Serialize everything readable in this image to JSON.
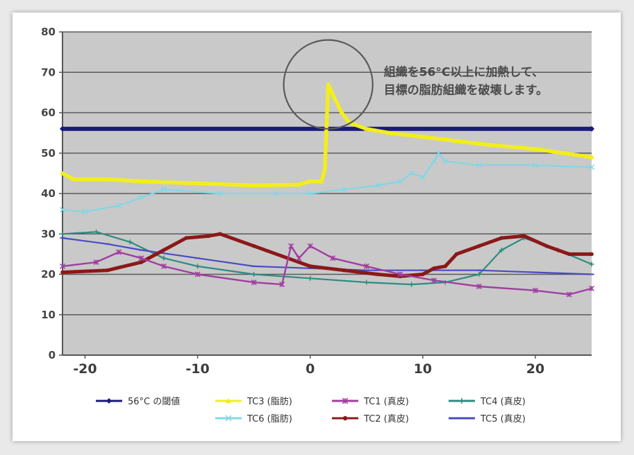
{
  "chart_data": {
    "type": "line",
    "title": "",
    "xlabel": "",
    "ylabel": "",
    "xlim": [
      -22,
      25
    ],
    "ylim": [
      0,
      80
    ],
    "x_ticks": [
      -20,
      -10,
      0,
      10,
      20
    ],
    "y_ticks": [
      0,
      10,
      20,
      30,
      40,
      50,
      60,
      70,
      80
    ],
    "grid": "horizontal",
    "legend_position": "bottom",
    "annotation": {
      "lines": [
        "組織を56°C以上に加熱して、",
        "目標の脂肪組織を破壊します。"
      ],
      "circle_center": [
        1.6,
        67
      ],
      "circle_radius_y": 11
    },
    "series": [
      {
        "name": "56°C の閾値",
        "color": "#1a1a7a",
        "marker": "diamond",
        "points": [
          [
            -22,
            56
          ],
          [
            25,
            56
          ]
        ]
      },
      {
        "name": "TC3 (脂肪)",
        "color": "#f2ee1c",
        "marker": "triangle",
        "points": [
          [
            -22,
            45
          ],
          [
            -21,
            43.5
          ],
          [
            -18,
            43.5
          ],
          [
            -15,
            43
          ],
          [
            -10,
            42.5
          ],
          [
            -5,
            42
          ],
          [
            -1,
            42.2
          ],
          [
            0,
            43
          ],
          [
            1,
            43
          ],
          [
            1.3,
            46
          ],
          [
            1.6,
            67
          ],
          [
            2.1,
            64
          ],
          [
            2.8,
            60
          ],
          [
            3.5,
            57.5
          ],
          [
            5,
            56
          ],
          [
            7,
            55
          ],
          [
            10,
            54
          ],
          [
            13,
            53
          ],
          [
            16,
            52
          ],
          [
            20,
            51
          ],
          [
            25,
            49
          ]
        ]
      },
      {
        "name": "TC1 (真皮)",
        "color": "#a13ea1",
        "marker": "star",
        "points": [
          [
            -22,
            22
          ],
          [
            -19,
            23
          ],
          [
            -17,
            25.5
          ],
          [
            -15,
            24
          ],
          [
            -13,
            22
          ],
          [
            -10,
            20
          ],
          [
            -5,
            18
          ],
          [
            -2.5,
            17.5
          ],
          [
            -1.7,
            27
          ],
          [
            -1,
            24
          ],
          [
            0,
            27
          ],
          [
            2,
            24
          ],
          [
            5,
            22
          ],
          [
            8,
            20
          ],
          [
            11,
            18.5
          ],
          [
            15,
            17
          ],
          [
            20,
            16
          ],
          [
            23,
            15
          ],
          [
            25,
            16.5
          ]
        ]
      },
      {
        "name": "TC4 (真皮)",
        "color": "#2c8c82",
        "marker": "plus",
        "points": [
          [
            -22,
            30
          ],
          [
            -19,
            30.5
          ],
          [
            -16,
            28
          ],
          [
            -13,
            24
          ],
          [
            -10,
            22
          ],
          [
            -5,
            20
          ],
          [
            0,
            19
          ],
          [
            5,
            18
          ],
          [
            9,
            17.5
          ],
          [
            12,
            18
          ],
          [
            15,
            20
          ],
          [
            17,
            26
          ],
          [
            19,
            29
          ],
          [
            22,
            26
          ],
          [
            25,
            22.5
          ]
        ]
      },
      {
        "name": "TC6 (脂肪)",
        "color": "#7fd8e6",
        "marker": "x",
        "points": [
          [
            -22,
            36
          ],
          [
            -20,
            35.5
          ],
          [
            -17,
            37
          ],
          [
            -15,
            39
          ],
          [
            -13,
            41
          ],
          [
            -8,
            40
          ],
          [
            -3,
            40
          ],
          [
            0,
            40
          ],
          [
            3,
            41
          ],
          [
            6,
            42
          ],
          [
            8,
            43
          ],
          [
            9,
            45
          ],
          [
            10,
            44
          ],
          [
            11,
            48
          ],
          [
            11.4,
            50
          ],
          [
            12,
            48
          ],
          [
            15,
            47
          ],
          [
            20,
            47
          ],
          [
            25,
            46.5
          ]
        ]
      },
      {
        "name": "TC2 (真皮)",
        "color": "#8c1818",
        "marker": "circle",
        "points": [
          [
            -22,
            20.5
          ],
          [
            -18,
            21
          ],
          [
            -15,
            23
          ],
          [
            -13,
            26
          ],
          [
            -11,
            29
          ],
          [
            -9,
            29.5
          ],
          [
            -8,
            30
          ],
          [
            -5,
            27
          ],
          [
            -2,
            24
          ],
          [
            0,
            22
          ],
          [
            3,
            21
          ],
          [
            6,
            20
          ],
          [
            8,
            19.5
          ],
          [
            10,
            20
          ],
          [
            11,
            21.5
          ],
          [
            12,
            22
          ],
          [
            13,
            25
          ],
          [
            15,
            27
          ],
          [
            17,
            29
          ],
          [
            19,
            29.5
          ],
          [
            21,
            27
          ],
          [
            23,
            25
          ],
          [
            25,
            25
          ]
        ]
      },
      {
        "name": "TC5 (真皮)",
        "color": "#4a4ac8",
        "marker": "dash",
        "points": [
          [
            -22,
            29
          ],
          [
            -18,
            27.5
          ],
          [
            -15,
            26
          ],
          [
            -10,
            24
          ],
          [
            -5,
            22
          ],
          [
            0,
            21.5
          ],
          [
            5,
            21
          ],
          [
            10,
            21
          ],
          [
            15,
            21
          ],
          [
            20,
            20.5
          ],
          [
            25,
            20
          ]
        ]
      }
    ]
  }
}
